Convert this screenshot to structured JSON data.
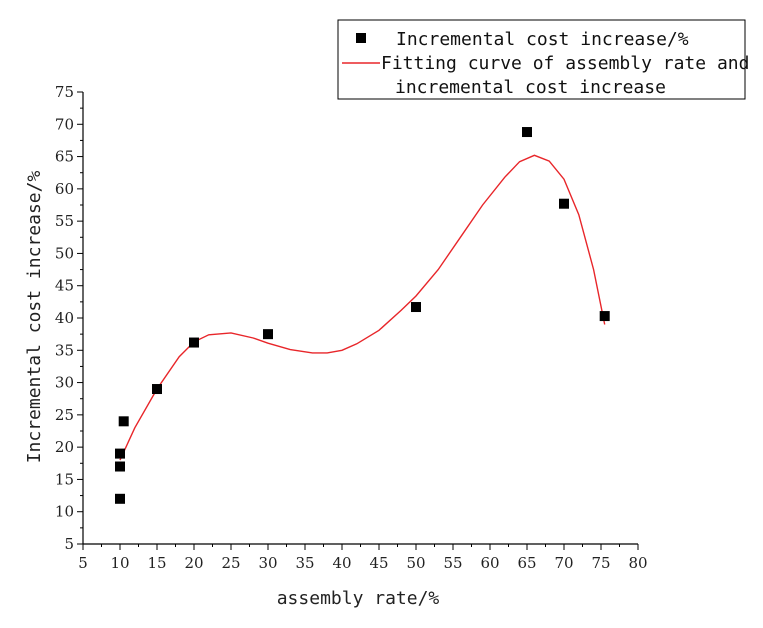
{
  "chart_data": {
    "type": "scatter",
    "xlabel": "assembly rate/%",
    "ylabel": "Incremental cost increase/%",
    "xlim": [
      5,
      80
    ],
    "ylim": [
      5,
      75
    ],
    "xticks": [
      5,
      10,
      15,
      20,
      25,
      30,
      35,
      40,
      45,
      50,
      55,
      60,
      65,
      70,
      75,
      80
    ],
    "yticks": [
      5,
      10,
      15,
      20,
      25,
      30,
      35,
      40,
      45,
      50,
      55,
      60,
      65,
      70,
      75
    ],
    "grid": false,
    "legend_position": "top-right",
    "series": [
      {
        "name": "Incremental cost increase/%",
        "kind": "scatter",
        "marker": "square",
        "color": "#000000",
        "points": [
          {
            "x": 10,
            "y": 12
          },
          {
            "x": 10,
            "y": 17
          },
          {
            "x": 10,
            "y": 19
          },
          {
            "x": 10.5,
            "y": 24
          },
          {
            "x": 15,
            "y": 29
          },
          {
            "x": 20,
            "y": 36.2
          },
          {
            "x": 30,
            "y": 37.5
          },
          {
            "x": 50,
            "y": 41.7
          },
          {
            "x": 65,
            "y": 68.8
          },
          {
            "x": 70,
            "y": 57.7
          },
          {
            "x": 75.5,
            "y": 40.3
          }
        ]
      },
      {
        "name_lines": [
          "Fitting curve of assembly rate and",
          "incremental cost increase"
        ],
        "kind": "line",
        "color": "#e8262a",
        "points": [
          {
            "x": 10,
            "y": 18
          },
          {
            "x": 12,
            "y": 23
          },
          {
            "x": 15,
            "y": 29
          },
          {
            "x": 18,
            "y": 34
          },
          {
            "x": 20,
            "y": 36.3
          },
          {
            "x": 22,
            "y": 37.4
          },
          {
            "x": 25,
            "y": 37.7
          },
          {
            "x": 28,
            "y": 36.9
          },
          {
            "x": 30,
            "y": 36.1
          },
          {
            "x": 33,
            "y": 35.1
          },
          {
            "x": 36,
            "y": 34.6
          },
          {
            "x": 38,
            "y": 34.6
          },
          {
            "x": 40,
            "y": 35.0
          },
          {
            "x": 42,
            "y": 36.0
          },
          {
            "x": 45,
            "y": 38.1
          },
          {
            "x": 48,
            "y": 41.2
          },
          {
            "x": 50,
            "y": 43.4
          },
          {
            "x": 53,
            "y": 47.5
          },
          {
            "x": 56,
            "y": 52.5
          },
          {
            "x": 59,
            "y": 57.5
          },
          {
            "x": 62,
            "y": 61.8
          },
          {
            "x": 64,
            "y": 64.2
          },
          {
            "x": 66,
            "y": 65.2
          },
          {
            "x": 68,
            "y": 64.3
          },
          {
            "x": 70,
            "y": 61.5
          },
          {
            "x": 72,
            "y": 56.0
          },
          {
            "x": 74,
            "y": 47.5
          },
          {
            "x": 75.5,
            "y": 39.0
          }
        ]
      }
    ]
  }
}
